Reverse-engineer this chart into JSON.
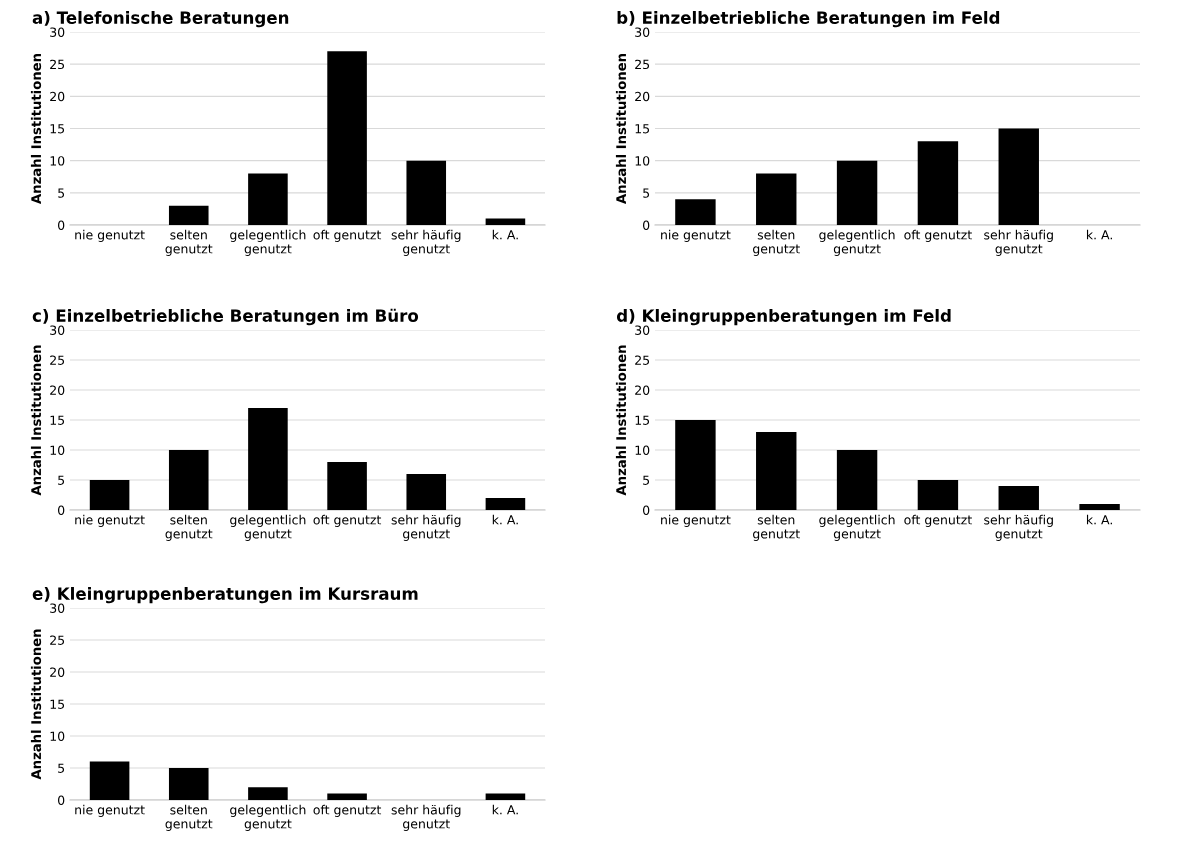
{
  "chart_data": [
    {
      "type": "bar",
      "title": "a) Telefonische Beratungen",
      "ylabel": "Anzahl Institutionen",
      "categories": [
        "nie genutzt",
        "selten\ngenutzt",
        "gelegentlich\ngenutzt",
        "oft genutzt",
        "sehr häufig\ngenutzt",
        "k. A."
      ],
      "values": [
        0,
        3,
        8,
        27,
        10,
        1
      ],
      "color": "#000000",
      "ylim": [
        0,
        30
      ],
      "yticks": [
        0,
        5,
        10,
        15,
        20,
        25,
        30
      ],
      "grid": "y"
    },
    {
      "type": "bar",
      "title": "b) Einzelbetriebliche Beratungen im Feld",
      "ylabel": "Anzahl Institutionen",
      "categories": [
        "nie genutzt",
        "selten\ngenutzt",
        "gelegentlich\ngenutzt",
        "oft genutzt",
        "sehr häufig\ngenutzt",
        "k. A."
      ],
      "values": [
        4,
        8,
        10,
        13,
        15,
        0
      ],
      "color": "#000000",
      "ylim": [
        0,
        30
      ],
      "yticks": [
        0,
        5,
        10,
        15,
        20,
        25,
        30
      ],
      "grid": "y"
    },
    {
      "type": "bar",
      "title": "c) Einzelbetriebliche Beratungen im Büro",
      "ylabel": "Anzahl Institutionen",
      "categories": [
        "nie genutzt",
        "selten\ngenutzt",
        "gelegentlich\ngenutzt",
        "oft genutzt",
        "sehr häufig\ngenutzt",
        "k. A."
      ],
      "values": [
        5,
        10,
        17,
        8,
        6,
        2
      ],
      "color": "#000000",
      "ylim": [
        0,
        30
      ],
      "yticks": [
        0,
        5,
        10,
        15,
        20,
        25,
        30
      ],
      "grid": "y"
    },
    {
      "type": "bar",
      "title": "d) Kleingruppenberatungen im Feld",
      "ylabel": "Anzahl Institutionen",
      "categories": [
        "nie genutzt",
        "selten\ngenutzt",
        "gelegentlich\ngenutzt",
        "oft genutzt",
        "sehr häufig\ngenutzt",
        "k. A."
      ],
      "values": [
        15,
        13,
        10,
        5,
        4,
        1
      ],
      "color": "#000000",
      "ylim": [
        0,
        30
      ],
      "yticks": [
        0,
        5,
        10,
        15,
        20,
        25,
        30
      ],
      "grid": "y"
    },
    {
      "type": "bar",
      "title": "e) Kleingruppenberatungen im Kursraum",
      "ylabel": "Anzahl Institutionen",
      "categories": [
        "nie genutzt",
        "selten\ngenutzt",
        "gelegentlich\ngenutzt",
        "oft genutzt",
        "sehr häufig\ngenutzt",
        "k. A."
      ],
      "values": [
        6,
        5,
        2,
        1,
        0,
        1
      ],
      "color": "#000000",
      "ylim": [
        0,
        30
      ],
      "yticks": [
        0,
        5,
        10,
        15,
        20,
        25,
        30
      ],
      "grid": "y"
    }
  ]
}
